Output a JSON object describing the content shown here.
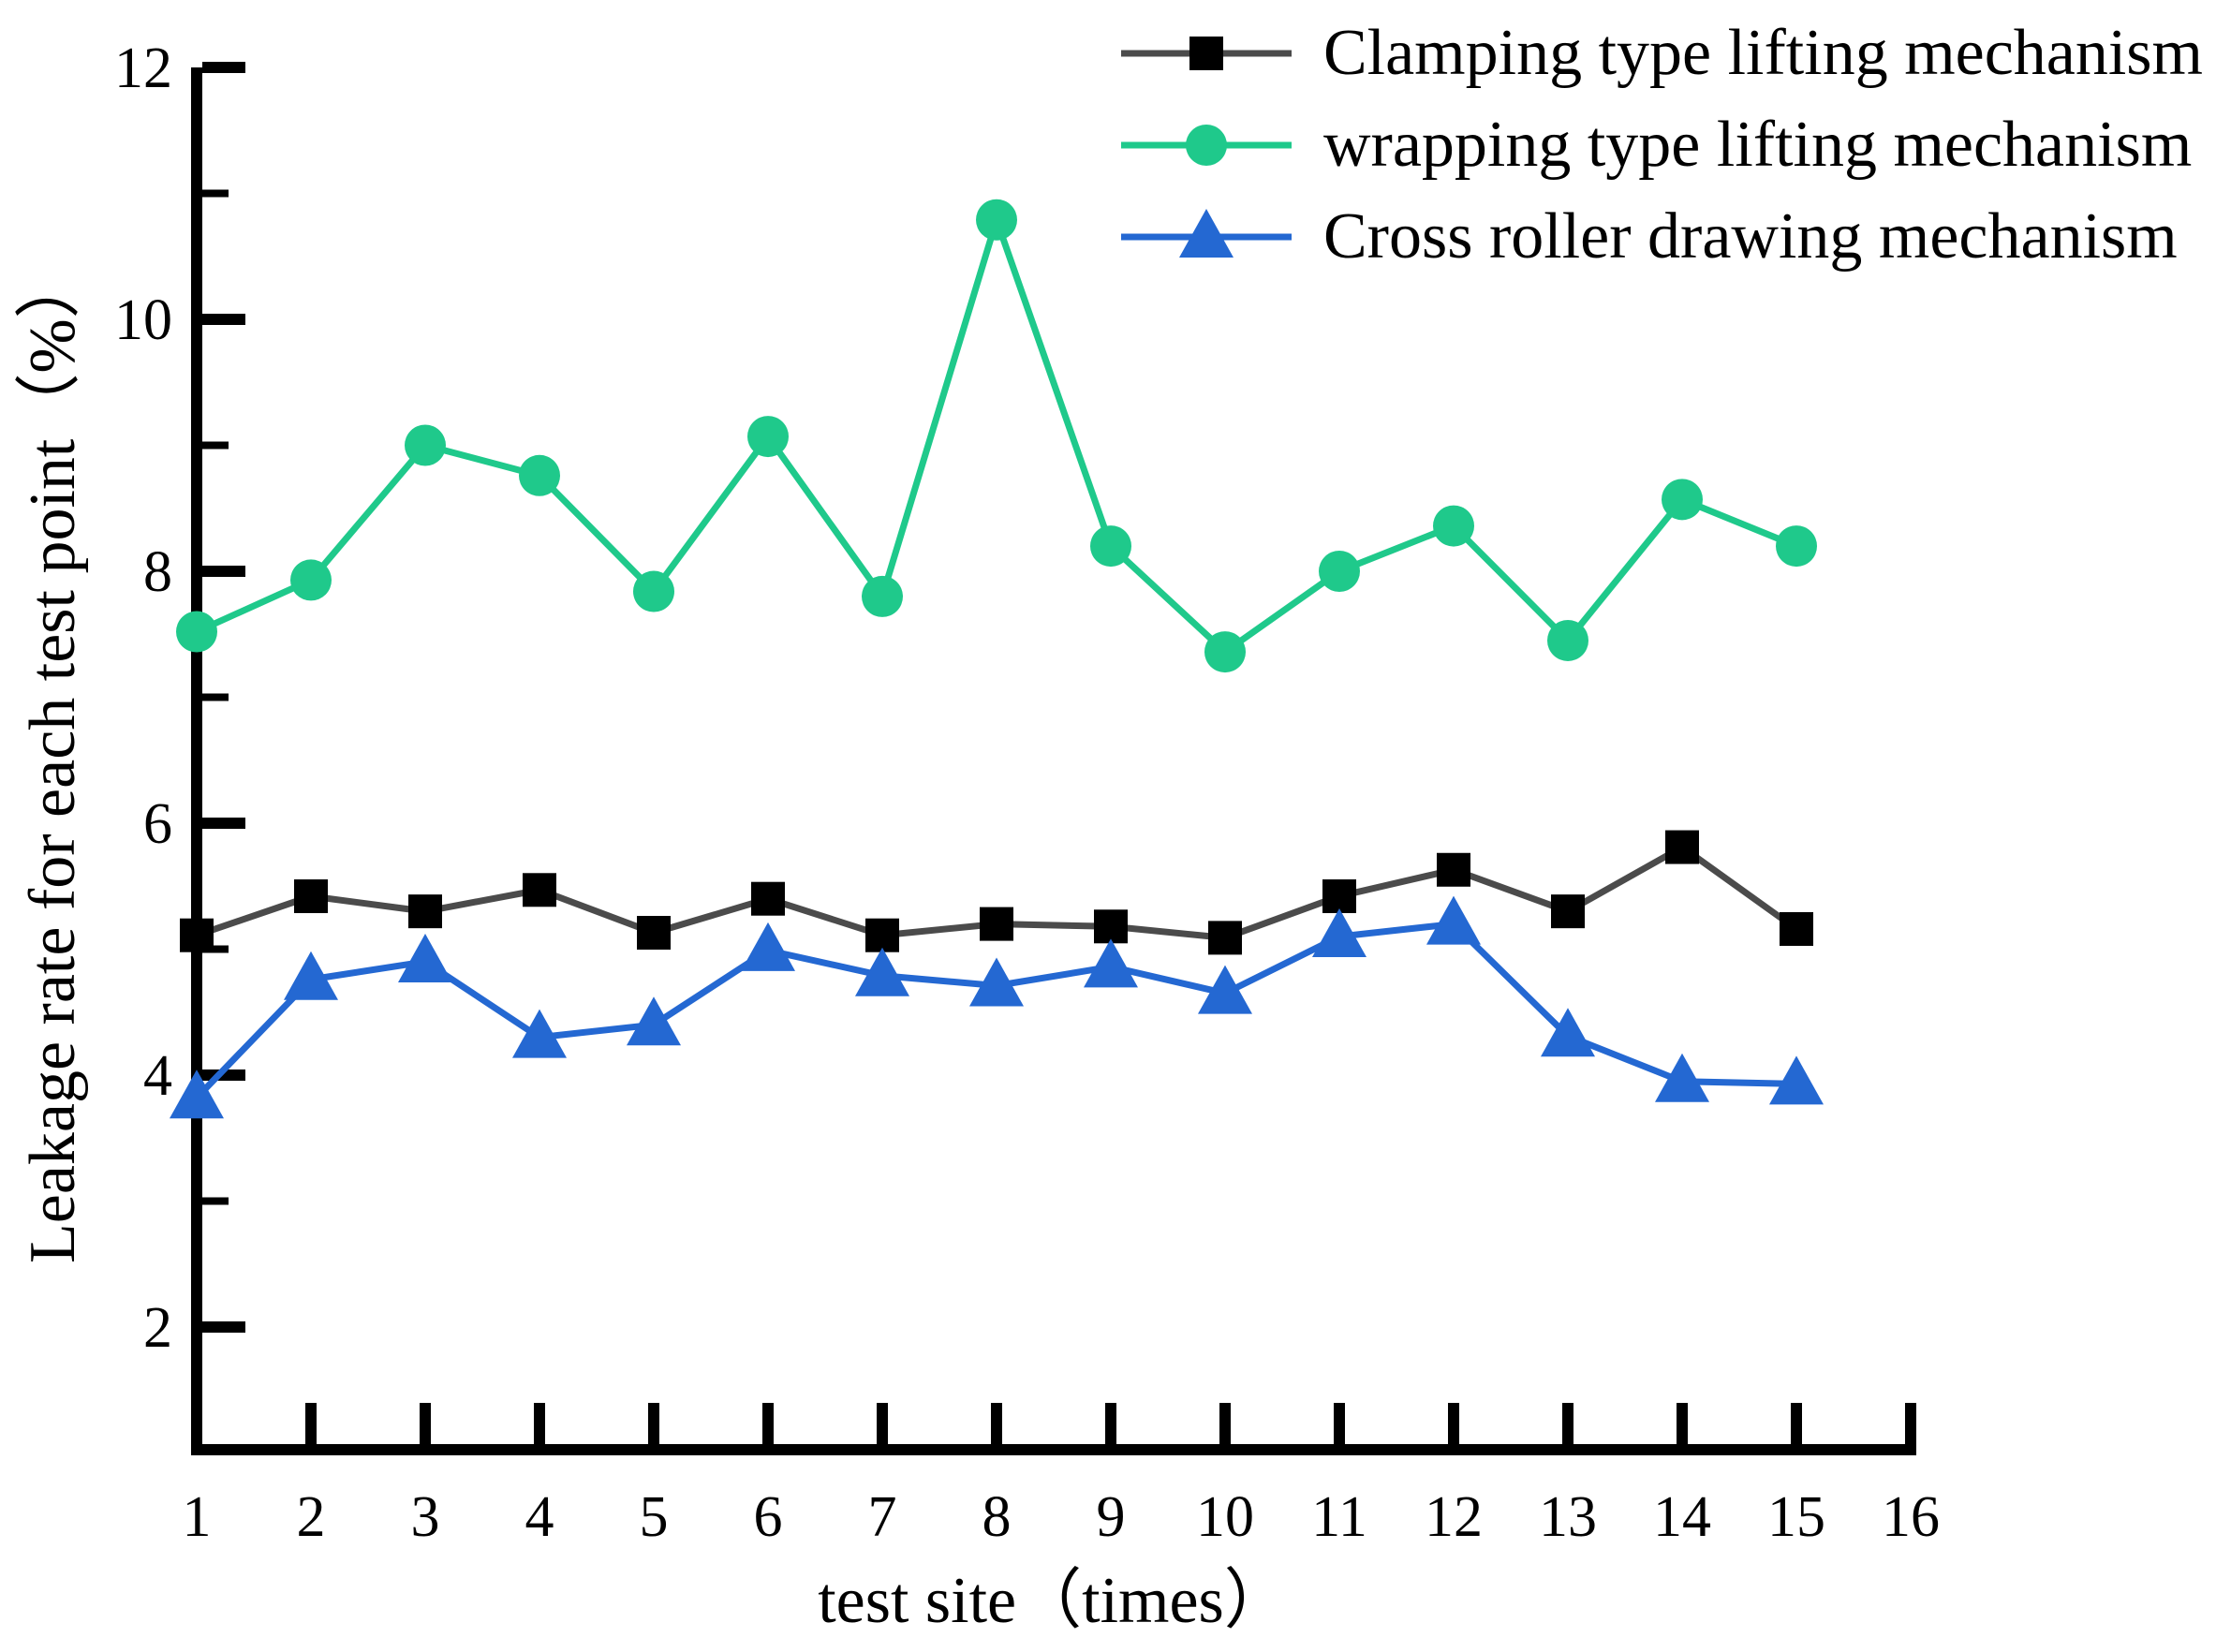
{
  "chart_data": {
    "type": "line",
    "title": "",
    "xlabel": "test site（times）",
    "ylabel": "Leakage rate for each test point（%）",
    "x": [
      1,
      2,
      3,
      4,
      5,
      6,
      7,
      8,
      9,
      10,
      11,
      12,
      13,
      14,
      15
    ],
    "x_ticks": [
      1,
      2,
      3,
      4,
      5,
      6,
      7,
      8,
      9,
      10,
      11,
      12,
      13,
      14,
      15,
      16
    ],
    "y_ticks_major": [
      2,
      4,
      6,
      8,
      10,
      12
    ],
    "y_ticks_minor": [
      3,
      5,
      7,
      9,
      11
    ],
    "xlim": [
      1,
      16
    ],
    "ylim": [
      1,
      12
    ],
    "grid": false,
    "legend_position": "top-right",
    "series": [
      {
        "name": "Clamping type lifting mechanism",
        "marker": "square",
        "marker_color": "#000000",
        "line_color": "#4b4b4b",
        "values": [
          5.11,
          5.42,
          5.3,
          5.47,
          5.13,
          5.4,
          5.11,
          5.2,
          5.18,
          5.09,
          5.42,
          5.63,
          5.3,
          5.81,
          5.16
        ]
      },
      {
        "name": "wrapping type lifting mechanism",
        "marker": "circle",
        "marker_color": "#1fc98b",
        "line_color": "#1fc98b",
        "values": [
          7.52,
          7.93,
          9.0,
          8.76,
          7.84,
          9.07,
          7.8,
          10.79,
          8.2,
          7.36,
          8.0,
          8.36,
          7.45,
          8.57,
          8.2
        ]
      },
      {
        "name": "Cross roller drawing mechanism",
        "marker": "triangle",
        "marker_color": "#2468d2",
        "line_color": "#2468d2",
        "values": [
          3.82,
          4.76,
          4.9,
          4.3,
          4.4,
          4.99,
          4.79,
          4.71,
          4.86,
          4.65,
          5.1,
          5.2,
          4.31,
          3.95,
          3.93
        ]
      }
    ]
  }
}
